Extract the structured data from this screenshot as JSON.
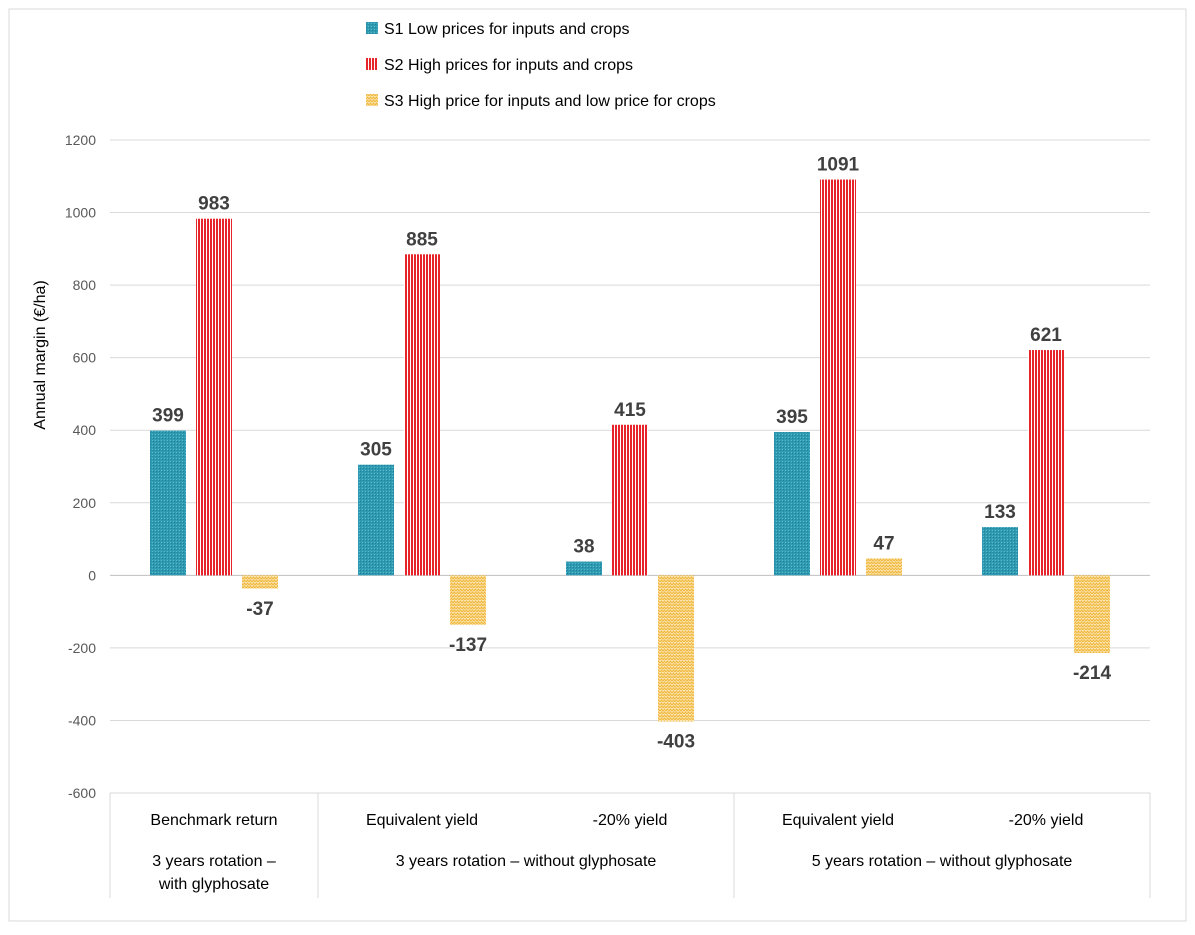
{
  "chart_data": {
    "type": "bar",
    "title": "",
    "ylabel": "Annual margin (€/ha)",
    "xlabel": "",
    "ylim": [
      -600,
      1200
    ],
    "yticks": [
      -600,
      -400,
      -200,
      0,
      200,
      400,
      600,
      800,
      1000,
      1200
    ],
    "grid": true,
    "legend_position": "top",
    "categories": [
      "Benchmark return",
      "Equivalent yield",
      "-20% yield",
      "Equivalent yield",
      "-20% yield"
    ],
    "groups": [
      {
        "label": "3 years rotation –",
        "label2": "with glyphosate",
        "span": [
          0,
          0
        ]
      },
      {
        "label": "3 years rotation – without glyphosate",
        "label2": "",
        "span": [
          1,
          2
        ]
      },
      {
        "label": "5 years rotation – without glyphosate",
        "label2": "",
        "span": [
          3,
          4
        ]
      }
    ],
    "series": [
      {
        "name": "S1 Low prices for inputs and crops",
        "color": "#2e9bb2",
        "pattern": "dots",
        "values": [
          399,
          305,
          38,
          395,
          133
        ]
      },
      {
        "name": "S2 High prices for inputs and crops",
        "color": "#e8242b",
        "pattern": "vertical-stripes",
        "values": [
          983,
          885,
          415,
          1091,
          621
        ]
      },
      {
        "name": "S3 High price for inputs and low price for crops",
        "color": "#f5c85a",
        "pattern": "zigzag",
        "values": [
          -37,
          -137,
          -403,
          47,
          -214
        ]
      }
    ]
  }
}
